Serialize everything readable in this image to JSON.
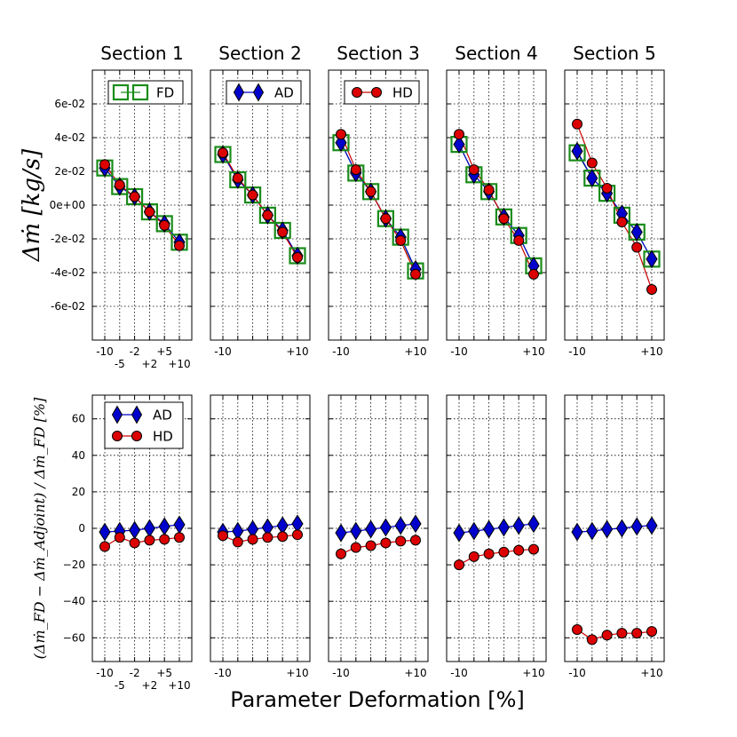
{
  "figure": {
    "xlabel": "Parameter Deformation [%]",
    "ylabel_top": "Δṁ  [kg/s]",
    "ylabel_bottom": "(Δṁ_FD − Δṁ_Adjoint) / Δṁ_FD [%]"
  },
  "colors": {
    "fd": "#1a8c1a",
    "ad_fill": "#0000cc",
    "hd_fill": "#dd0000",
    "ad_line": "#0000cc",
    "hd_line": "#cc0000",
    "grid": "#000000"
  },
  "chart_data": [
    {
      "type": "line",
      "row": "top",
      "x": [
        -10,
        -5,
        -2,
        2,
        5,
        10
      ],
      "ylim": [
        -0.08,
        0.08
      ],
      "yticks": [
        -0.06,
        -0.04,
        -0.02,
        0,
        0.02,
        0.04,
        0.06
      ],
      "ytick_labels": [
        "-6e-02",
        "-4e-02",
        "-2e-02",
        "0e+00",
        "2e-02",
        "4e-02",
        "6e-02"
      ],
      "panels": [
        {
          "title": "Section 1",
          "xtick_labels_row1": [
            "-10",
            "-2",
            "+5"
          ],
          "xtick_labels_row2": [
            "-5",
            "+2",
            "+10"
          ],
          "legend": [
            "FD"
          ],
          "series": [
            {
              "name": "FD",
              "values": [
                0.022,
                0.011,
                0.005,
                -0.004,
                -0.011,
                -0.022
              ]
            },
            {
              "name": "AD",
              "values": [
                0.022,
                0.011,
                0.005,
                -0.004,
                -0.011,
                -0.022
              ]
            },
            {
              "name": "HD",
              "values": [
                0.024,
                0.012,
                0.005,
                -0.004,
                -0.012,
                -0.024
              ]
            }
          ]
        },
        {
          "title": "Section 2",
          "xtick_labels_row1": [
            "-10",
            "+10"
          ],
          "xtick_labels_row2": [],
          "legend": [
            "AD"
          ],
          "series": [
            {
              "name": "FD",
              "values": [
                0.03,
                0.015,
                0.006,
                -0.006,
                -0.015,
                -0.03
              ]
            },
            {
              "name": "AD",
              "values": [
                0.03,
                0.015,
                0.006,
                -0.006,
                -0.015,
                -0.03
              ]
            },
            {
              "name": "HD",
              "values": [
                0.031,
                0.016,
                0.006,
                -0.006,
                -0.016,
                -0.031
              ]
            }
          ]
        },
        {
          "title": "Section 3",
          "xtick_labels_row1": [
            "-10",
            "+10"
          ],
          "xtick_labels_row2": [],
          "legend": [
            "HD"
          ],
          "series": [
            {
              "name": "FD",
              "values": [
                0.037,
                0.019,
                0.008,
                -0.008,
                -0.019,
                -0.039
              ]
            },
            {
              "name": "AD",
              "values": [
                0.037,
                0.019,
                0.008,
                -0.008,
                -0.019,
                -0.038
              ]
            },
            {
              "name": "HD",
              "values": [
                0.042,
                0.021,
                0.008,
                -0.008,
                -0.021,
                -0.041
              ]
            }
          ]
        },
        {
          "title": "Section 4",
          "xtick_labels_row1": [
            "-10",
            "+10"
          ],
          "xtick_labels_row2": [],
          "legend": [],
          "series": [
            {
              "name": "FD",
              "values": [
                0.036,
                0.018,
                0.008,
                -0.007,
                -0.018,
                -0.036
              ]
            },
            {
              "name": "AD",
              "values": [
                0.036,
                0.018,
                0.008,
                -0.007,
                -0.018,
                -0.036
              ]
            },
            {
              "name": "HD",
              "values": [
                0.042,
                0.021,
                0.009,
                -0.008,
                -0.021,
                -0.041
              ]
            }
          ]
        },
        {
          "title": "Section 5",
          "xtick_labels_row1": [
            "-10",
            "+10"
          ],
          "xtick_labels_row2": [],
          "legend": [],
          "series": [
            {
              "name": "FD",
              "values": [
                0.031,
                0.016,
                0.007,
                -0.006,
                -0.016,
                -0.032
              ]
            },
            {
              "name": "AD",
              "values": [
                0.032,
                0.016,
                0.007,
                -0.005,
                -0.016,
                -0.032
              ]
            },
            {
              "name": "HD",
              "values": [
                0.048,
                0.025,
                0.01,
                -0.01,
                -0.025,
                -0.05
              ]
            }
          ]
        }
      ]
    },
    {
      "type": "line",
      "row": "bottom",
      "x": [
        -10,
        -5,
        -2,
        2,
        5,
        10
      ],
      "ylim": [
        -73,
        73
      ],
      "yticks": [
        -60,
        -40,
        -20,
        0,
        20,
        40,
        60
      ],
      "ytick_labels": [
        "−60",
        "−40",
        "−20",
        "0",
        "20",
        "40",
        "60"
      ],
      "panels": [
        {
          "xtick_labels_row1": [
            "-10",
            "-2",
            "+5"
          ],
          "xtick_labels_row2": [
            "-5",
            "+2",
            "+10"
          ],
          "legend": [
            "AD",
            "HD"
          ],
          "series": [
            {
              "name": "AD",
              "values": [
                -2,
                -1.5,
                -1,
                0,
                1,
                2
              ]
            },
            {
              "name": "HD",
              "values": [
                -10,
                -5,
                -8,
                -6.5,
                -6,
                -5
              ]
            }
          ]
        },
        {
          "xtick_labels_row1": [
            "-10",
            "+10"
          ],
          "xtick_labels_row2": [],
          "legend": [],
          "series": [
            {
              "name": "AD",
              "values": [
                -2,
                -1.5,
                -0.5,
                0.5,
                1.5,
                2.5
              ]
            },
            {
              "name": "HD",
              "values": [
                -4,
                -7.5,
                -6,
                -5,
                -4.5,
                -3.5
              ]
            }
          ]
        },
        {
          "xtick_labels_row1": [
            "-10",
            "+10"
          ],
          "xtick_labels_row2": [],
          "legend": [],
          "series": [
            {
              "name": "AD",
              "values": [
                -2.5,
                -1.5,
                -0.5,
                0.5,
                1.5,
                2.5
              ]
            },
            {
              "name": "HD",
              "values": [
                -14,
                -10.5,
                -9.5,
                -8,
                -7,
                -6.5
              ]
            }
          ]
        },
        {
          "xtick_labels_row1": [
            "-10",
            "+10"
          ],
          "xtick_labels_row2": [],
          "legend": [],
          "series": [
            {
              "name": "AD",
              "values": [
                -2.5,
                -1.5,
                -0.5,
                0.5,
                1.5,
                2.5
              ]
            },
            {
              "name": "HD",
              "values": [
                -20,
                -15.5,
                -14,
                -13,
                -12,
                -11.5
              ]
            }
          ]
        },
        {
          "xtick_labels_row1": [
            "-10",
            "+10"
          ],
          "xtick_labels_row2": [],
          "legend": [],
          "series": [
            {
              "name": "AD",
              "values": [
                -2,
                -1.5,
                -0.5,
                0,
                1,
                1.5
              ]
            },
            {
              "name": "HD",
              "values": [
                -55.5,
                -61,
                -58.5,
                -57.5,
                -57.5,
                -56.5
              ]
            }
          ]
        }
      ]
    }
  ]
}
